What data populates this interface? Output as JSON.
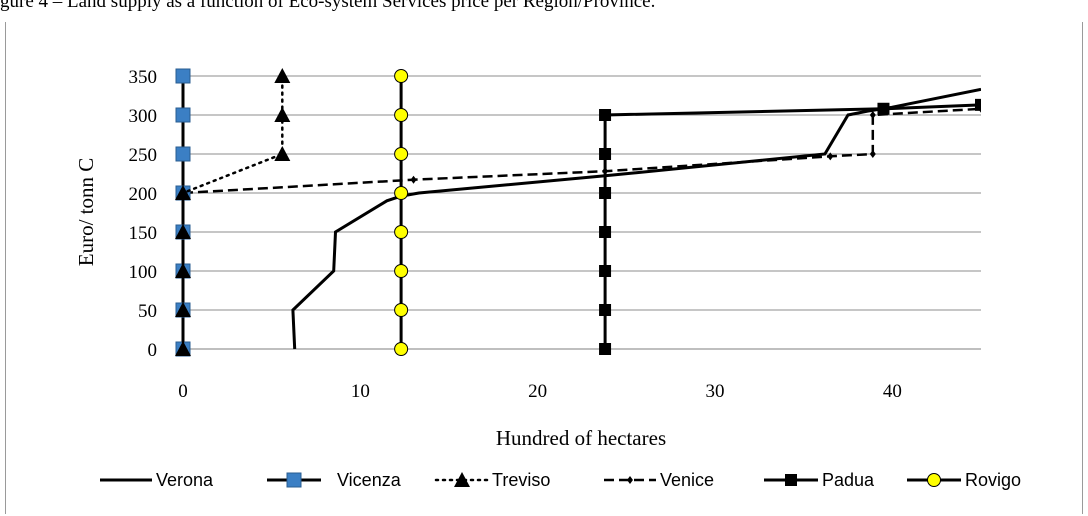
{
  "caption": "gure 4 – Land supply as a function of Eco-system Services price per Region/Province.",
  "chart_data": {
    "type": "line",
    "title": "",
    "xlabel": "Hundred of hectares",
    "ylabel": "Euro/ tonn C",
    "xlim": [
      0,
      45
    ],
    "ylim": [
      0,
      350
    ],
    "xticks": [
      0,
      10,
      20,
      30,
      40
    ],
    "yticks": [
      0,
      50,
      100,
      150,
      200,
      250,
      300,
      350
    ],
    "grid": "horizontal",
    "legend_position": "bottom",
    "series": [
      {
        "name": "Verona",
        "style": "solid-thick",
        "marker": "none",
        "color": "#000000",
        "points": [
          [
            6.3,
            0
          ],
          [
            6.2,
            50
          ],
          [
            8.5,
            100
          ],
          [
            8.6,
            150
          ],
          [
            11.5,
            190
          ],
          [
            12.3,
            196
          ],
          [
            13.3,
            200
          ],
          [
            23.8,
            222
          ],
          [
            36.2,
            250
          ],
          [
            37.5,
            300
          ],
          [
            38.6,
            305
          ],
          [
            40.0,
            310
          ],
          [
            45,
            333
          ]
        ]
      },
      {
        "name": "Vicenza",
        "style": "solid-thick",
        "marker": "square",
        "color": "#3b7fc4",
        "points": [
          [
            0,
            0
          ],
          [
            0,
            50
          ],
          [
            0,
            100
          ],
          [
            0,
            150
          ],
          [
            0,
            200
          ],
          [
            0,
            250
          ],
          [
            0,
            300
          ],
          [
            0,
            350
          ]
        ]
      },
      {
        "name": "Treviso",
        "style": "dotted",
        "marker": "triangle",
        "color": "#000000",
        "points": [
          [
            0,
            0
          ],
          [
            0,
            50
          ],
          [
            0,
            100
          ],
          [
            0,
            150
          ],
          [
            0,
            200
          ],
          [
            5.6,
            250
          ],
          [
            5.6,
            300
          ],
          [
            5.6,
            350
          ]
        ]
      },
      {
        "name": "Venice",
        "style": "dashed",
        "marker": "diamond-small",
        "color": "#000000",
        "points": [
          [
            0,
            200
          ],
          [
            13.0,
            217
          ],
          [
            23.8,
            228
          ],
          [
            36.5,
            247
          ],
          [
            38.9,
            250
          ],
          [
            38.9,
            300
          ],
          [
            45,
            308
          ]
        ]
      },
      {
        "name": "Padua",
        "style": "solid-thick",
        "marker": "square",
        "color": "#000000",
        "points": [
          [
            23.8,
            0
          ],
          [
            23.8,
            50
          ],
          [
            23.8,
            100
          ],
          [
            23.8,
            150
          ],
          [
            23.8,
            200
          ],
          [
            23.8,
            250
          ],
          [
            23.8,
            300
          ],
          [
            39.5,
            308
          ],
          [
            45,
            313
          ]
        ]
      },
      {
        "name": "Rovigo",
        "style": "solid-thick",
        "marker": "circle",
        "color": "#000000",
        "marker_color": "#ffff00",
        "points": [
          [
            12.3,
            0
          ],
          [
            12.3,
            50
          ],
          [
            12.3,
            100
          ],
          [
            12.3,
            150
          ],
          [
            12.3,
            200
          ],
          [
            12.3,
            250
          ],
          [
            12.3,
            300
          ],
          [
            12.3,
            350
          ]
        ]
      }
    ]
  }
}
